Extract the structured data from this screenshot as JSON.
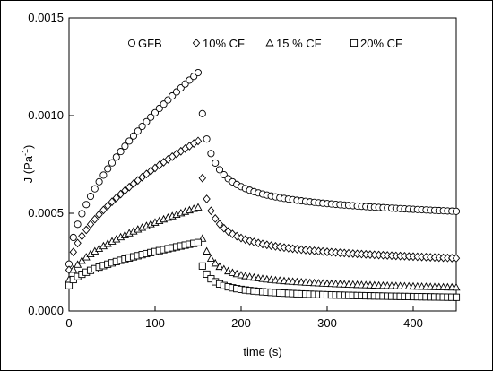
{
  "chart_data": {
    "type": "scatter",
    "xlabel": "time (s)",
    "ylabel_main": "J  (Pa",
    "ylabel_sup": "-1",
    "ylabel_close": ")",
    "xlim": [
      0,
      450
    ],
    "ylim": [
      0,
      0.0015
    ],
    "xticks": [
      0,
      100,
      200,
      300,
      400
    ],
    "xtick_labels": [
      "0",
      "100",
      "200",
      "300",
      "400"
    ],
    "yticks": [
      0,
      0.0005,
      0.001,
      0.0015
    ],
    "ytick_labels": [
      "0.0000",
      "0.0005",
      "0.0010",
      "0.0015"
    ],
    "grid": false,
    "legend_position": "top",
    "series": [
      {
        "name": "GFB",
        "marker": "circle",
        "t": [
          0,
          150,
          450
        ],
        "J0": 0.00024,
        "Jmax": 0.00122,
        "J1": 0.00101,
        "Jend": 0.00051
      },
      {
        "name": "10% CF",
        "marker": "diamond",
        "t": [
          0,
          150,
          450
        ],
        "J0": 0.00021,
        "Jmax": 0.00087,
        "J1": 0.00068,
        "Jend": 0.00027
      },
      {
        "name": "15 % CF",
        "marker": "triangle",
        "t": [
          0,
          150,
          450
        ],
        "J0": 0.00016,
        "Jmax": 0.00053,
        "J1": 0.00037,
        "Jend": 0.00012
      },
      {
        "name": "20% CF",
        "marker": "square",
        "t": [
          0,
          150,
          450
        ],
        "J0": 0.00013,
        "Jmax": 0.00035,
        "J1": 0.00023,
        "Jend": 7e-05
      }
    ]
  }
}
